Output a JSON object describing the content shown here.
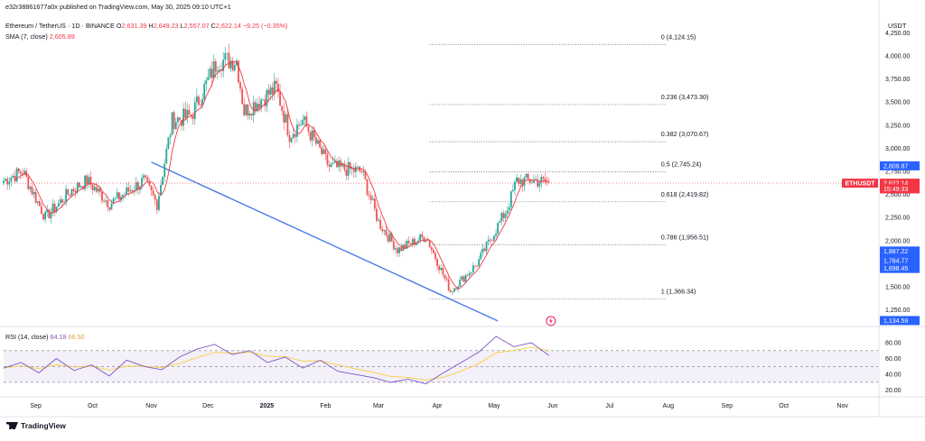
{
  "header": {
    "published": "e32r38861677a0x published on TradingView.com, May 30, 2025 09:10 UTC+1",
    "symbol": "Ethereum / TetherUS · 1D · BINANCE",
    "o_label": "O",
    "o_value": "2,631.39",
    "h_label": "H",
    "h_value": "2,649.23",
    "l_label": "L",
    "l_value": "2,557.07",
    "c_label": "C",
    "c_value": "2,622.14",
    "change": "−9.25 (−0.35%)",
    "sma_label": "SMA (7, close)",
    "sma_value": "2,605.89",
    "currency": "USDT"
  },
  "rsi": {
    "label": "RSI (14, close)",
    "value1": "64.18",
    "value2": "66.50"
  },
  "footer": {
    "brand": "TradingView"
  },
  "colors": {
    "up": "#26a69a",
    "down": "#ef5350",
    "sma": "#f23645",
    "trendline": "#4a7ce8",
    "rsi": "#7e57c2",
    "rsi_ma": "#f5d042",
    "tag_blue": "#2962ff",
    "tag_red": "#f23645"
  },
  "chart_data": {
    "type": "candlestick",
    "title": "Ethereum / TetherUS · 1D · BINANCE",
    "x_ticks": [
      "Sep",
      "Oct",
      "Nov",
      "Dec",
      "2025",
      "Feb",
      "Mar",
      "Apr",
      "May",
      "Jun",
      "Jul",
      "Aug",
      "Sep",
      "Oct",
      "Nov"
    ],
    "y_ticks": [
      "4,250.00",
      "4,000.00",
      "3,750.00",
      "3,500.00",
      "3,250.00",
      "3,000.00",
      "2,750.00",
      "2,500.00",
      "2,250.00",
      "2,000.00",
      "1,750.00",
      "1,500.00",
      "1,250.00"
    ],
    "y_tick_values": [
      4250,
      4000,
      3750,
      3500,
      3250,
      3000,
      2750,
      2500,
      2250,
      2000,
      1750,
      1500,
      1250
    ],
    "ylim": [
      1090,
      4410
    ],
    "approx_close_path": [
      {
        "date": "2024-08-15",
        "close": 2650
      },
      {
        "date": "2024-08-25",
        "close": 2750
      },
      {
        "date": "2024-09-06",
        "close": 2250
      },
      {
        "date": "2024-09-20",
        "close": 2550
      },
      {
        "date": "2024-09-28",
        "close": 2650
      },
      {
        "date": "2024-10-10",
        "close": 2400
      },
      {
        "date": "2024-10-28",
        "close": 2650
      },
      {
        "date": "2024-11-04",
        "close": 2400
      },
      {
        "date": "2024-11-12",
        "close": 3300
      },
      {
        "date": "2024-11-22",
        "close": 3350
      },
      {
        "date": "2024-12-06",
        "close": 3950
      },
      {
        "date": "2024-12-16",
        "close": 3950
      },
      {
        "date": "2024-12-20",
        "close": 3400
      },
      {
        "date": "2025-01-06",
        "close": 3650
      },
      {
        "date": "2025-01-13",
        "close": 3150
      },
      {
        "date": "2025-01-20",
        "close": 3300
      },
      {
        "date": "2025-02-03",
        "close": 2800
      },
      {
        "date": "2025-02-20",
        "close": 2750
      },
      {
        "date": "2025-03-01",
        "close": 2200
      },
      {
        "date": "2025-03-11",
        "close": 1900
      },
      {
        "date": "2025-03-26",
        "close": 2050
      },
      {
        "date": "2025-04-08",
        "close": 1450
      },
      {
        "date": "2025-04-22",
        "close": 1750
      },
      {
        "date": "2025-05-08",
        "close": 2350
      },
      {
        "date": "2025-05-13",
        "close": 2650
      },
      {
        "date": "2025-05-23",
        "close": 2650
      },
      {
        "date": "2025-05-30",
        "close": 2622.14
      }
    ],
    "fib_levels": [
      {
        "label": "0 (4,124.15)",
        "value": 4124.15
      },
      {
        "label": "0.236 (3,473.30)",
        "value": 3473.3
      },
      {
        "label": "0.382 (3,070.67)",
        "value": 3070.67
      },
      {
        "label": "0.5 (2,745.24)",
        "value": 2745.24
      },
      {
        "label": "0.618 (2,419.82)",
        "value": 2419.82
      },
      {
        "label": "0.786 (1,956.51)",
        "value": 1956.51
      },
      {
        "label": "1 (1,366.34)",
        "value": 1366.34
      }
    ],
    "price_tags": [
      {
        "label": "2,809.87",
        "value": 2809.87,
        "color": "blue"
      },
      {
        "label": "ETHUSDT",
        "value": 2622.14,
        "color": "red",
        "side": "left"
      },
      {
        "label": "2,622.14",
        "value": 2622.14,
        "color": "red"
      },
      {
        "label": "15:49:33",
        "value": 2560,
        "color": "red"
      },
      {
        "label": "1,887.22",
        "value": 1887.22,
        "color": "blue"
      },
      {
        "label": "1,800.90",
        "value": 1800.9,
        "color": "blue"
      },
      {
        "label": "1,784.77",
        "value": 1784.77,
        "color": "blue"
      },
      {
        "label": "1,698.45",
        "value": 1698.45,
        "color": "blue"
      },
      {
        "label": "1,134.59",
        "value": 1134.59,
        "color": "blue"
      }
    ],
    "trendline": {
      "from": {
        "date": "2024-11-01",
        "price": 2850
      },
      "to": {
        "date": "2025-05-03",
        "price": 1130
      }
    },
    "rsi_pane": {
      "y_ticks": [
        "80.00",
        "60.00",
        "40.00",
        "20.00"
      ],
      "y_tick_values": [
        80,
        60,
        40,
        20
      ],
      "bands": [
        70,
        50,
        30
      ],
      "approx_path": [
        48,
        55,
        42,
        60,
        45,
        52,
        38,
        58,
        50,
        46,
        62,
        72,
        78,
        65,
        70,
        55,
        62,
        48,
        58,
        44,
        40,
        36,
        30,
        34,
        28,
        42,
        55,
        68,
        88,
        75,
        80,
        64
      ]
    }
  }
}
